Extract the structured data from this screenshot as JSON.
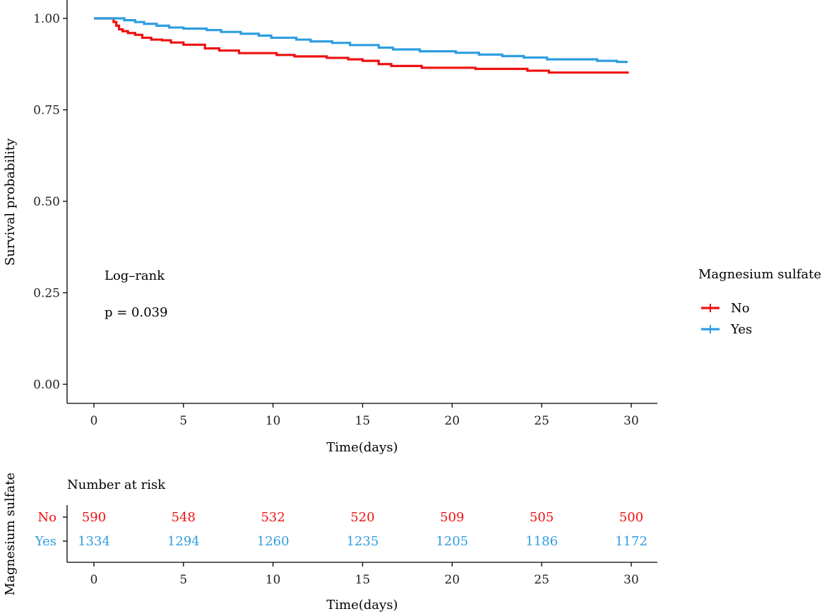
{
  "chart_data": [
    {
      "type": "line",
      "subtype": "kaplan-meier",
      "xlabel": "Time(days)",
      "ylabel": "Survival probability",
      "xlim": [
        0,
        30
      ],
      "ylim": [
        0,
        1
      ],
      "xticks": [
        0,
        5,
        10,
        15,
        20,
        25,
        30
      ],
      "yticks": [
        "0.00",
        "0.25",
        "0.50",
        "0.75",
        "1.00"
      ],
      "grid": false,
      "annotations": [
        "Log–rank",
        "p = 0.039"
      ],
      "legend": {
        "title": "Magnesium sulfate",
        "placement": "right"
      },
      "series": [
        {
          "name": "No",
          "color": "#ee1111",
          "x": [
            0,
            0.6,
            1.1,
            1.25,
            1.4,
            1.6,
            1.9,
            2.3,
            2.7,
            3.2,
            3.8,
            4.3,
            5.0,
            6.2,
            7.0,
            8.1,
            10.2,
            11.2,
            13.0,
            14.2,
            15.0,
            15.9,
            16.6,
            18.3,
            21.3,
            24.2,
            25.4,
            29.8
          ],
          "y": [
            1.0,
            1.0,
            0.99,
            0.98,
            0.97,
            0.965,
            0.96,
            0.955,
            0.947,
            0.942,
            0.94,
            0.934,
            0.928,
            0.918,
            0.912,
            0.905,
            0.9,
            0.896,
            0.892,
            0.888,
            0.884,
            0.875,
            0.87,
            0.865,
            0.862,
            0.857,
            0.852,
            0.849
          ]
        },
        {
          "name": "Yes",
          "color": "#2e9de0",
          "x": [
            0,
            0.8,
            1.7,
            2.3,
            2.8,
            3.5,
            4.2,
            5.0,
            6.3,
            7.1,
            8.2,
            9.2,
            9.9,
            11.3,
            12.1,
            13.3,
            14.3,
            15.9,
            16.7,
            18.2,
            20.2,
            21.5,
            22.8,
            24.0,
            25.3,
            28.1,
            29.2,
            29.8
          ],
          "y": [
            1.0,
            1.0,
            0.995,
            0.99,
            0.985,
            0.98,
            0.975,
            0.972,
            0.968,
            0.963,
            0.958,
            0.953,
            0.947,
            0.942,
            0.937,
            0.933,
            0.927,
            0.92,
            0.915,
            0.91,
            0.906,
            0.901,
            0.897,
            0.893,
            0.888,
            0.884,
            0.881,
            0.881
          ]
        }
      ]
    },
    {
      "type": "table",
      "title": "Number at risk",
      "ylabel": "Magnesium sulfate",
      "xlabel": "Time(days)",
      "x": [
        0,
        5,
        10,
        15,
        20,
        25,
        30
      ],
      "series": [
        {
          "name": "No",
          "color": "#ee1111",
          "values": [
            590,
            548,
            532,
            520,
            509,
            505,
            500
          ]
        },
        {
          "name": "Yes",
          "color": "#2e9de0",
          "values": [
            1334,
            1294,
            1260,
            1235,
            1205,
            1186,
            1172
          ]
        }
      ]
    }
  ]
}
